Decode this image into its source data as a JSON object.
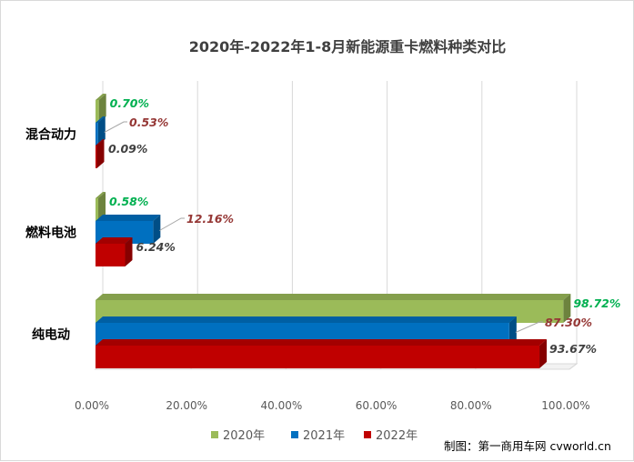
{
  "chart_data": {
    "type": "bar",
    "orientation": "horizontal",
    "title": "2020年-2022年1-8月新能源重卡燃料种类对比",
    "categories": [
      "混合动力",
      "燃料电池",
      "纯电动"
    ],
    "series": [
      {
        "name": "2020年",
        "color": "#9BBB59",
        "values": [
          0.7,
          0.58,
          98.72
        ],
        "labels": [
          "0.70%",
          "0.58%",
          "98.72%"
        ],
        "label_color": "#00B050"
      },
      {
        "name": "2021年",
        "color": "#0070C0",
        "values": [
          0.53,
          12.16,
          87.3
        ],
        "labels": [
          "0.53%",
          "12.16%",
          "87.30%"
        ],
        "label_color": "#953735"
      },
      {
        "name": "2022年",
        "color": "#C00000",
        "values": [
          0.09,
          6.24,
          93.67
        ],
        "labels": [
          "0.09%",
          "6.24%",
          "93.67%"
        ],
        "label_color": "#404040"
      }
    ],
    "xlim": [
      0,
      100
    ],
    "xticks": [
      "0.00%",
      "20.00%",
      "40.00%",
      "60.00%",
      "80.00%",
      "100.00%"
    ],
    "grid": true,
    "legend_position": "bottom"
  },
  "credit": "制图：第一商用车网 cvworld.cn"
}
